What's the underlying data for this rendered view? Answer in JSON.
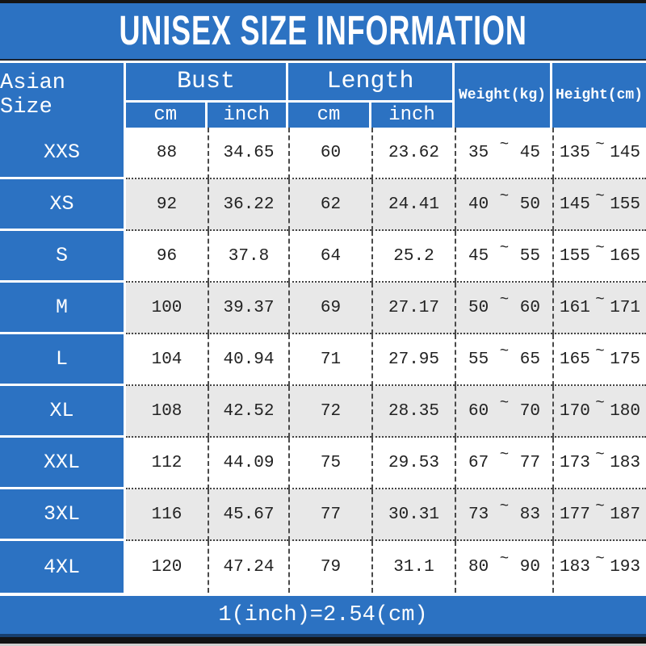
{
  "title": "UNISEX SIZE INFORMATION",
  "tilde": "~",
  "header": {
    "size_col": "Asian Size",
    "bust": "Bust",
    "length": "Length",
    "cm": "cm",
    "inch": "inch",
    "weight": "Weight(kg)",
    "height": "Height(cm)"
  },
  "rows": [
    {
      "size": "XXS",
      "bust_cm": "88",
      "bust_inch": "34.65",
      "length_cm": "60",
      "length_inch": "23.62",
      "weight_min": "35",
      "weight_max": "45",
      "height_min": "135",
      "height_max": "145"
    },
    {
      "size": "XS",
      "bust_cm": "92",
      "bust_inch": "36.22",
      "length_cm": "62",
      "length_inch": "24.41",
      "weight_min": "40",
      "weight_max": "50",
      "height_min": "145",
      "height_max": "155"
    },
    {
      "size": "S",
      "bust_cm": "96",
      "bust_inch": "37.8",
      "length_cm": "64",
      "length_inch": "25.2",
      "weight_min": "45",
      "weight_max": "55",
      "height_min": "155",
      "height_max": "165"
    },
    {
      "size": "M",
      "bust_cm": "100",
      "bust_inch": "39.37",
      "length_cm": "69",
      "length_inch": "27.17",
      "weight_min": "50",
      "weight_max": "60",
      "height_min": "161",
      "height_max": "171"
    },
    {
      "size": "L",
      "bust_cm": "104",
      "bust_inch": "40.94",
      "length_cm": "71",
      "length_inch": "27.95",
      "weight_min": "55",
      "weight_max": "65",
      "height_min": "165",
      "height_max": "175"
    },
    {
      "size": "XL",
      "bust_cm": "108",
      "bust_inch": "42.52",
      "length_cm": "72",
      "length_inch": "28.35",
      "weight_min": "60",
      "weight_max": "70",
      "height_min": "170",
      "height_max": "180"
    },
    {
      "size": "XXL",
      "bust_cm": "112",
      "bust_inch": "44.09",
      "length_cm": "75",
      "length_inch": "29.53",
      "weight_min": "67",
      "weight_max": "77",
      "height_min": "173",
      "height_max": "183"
    },
    {
      "size": "3XL",
      "bust_cm": "116",
      "bust_inch": "45.67",
      "length_cm": "77",
      "length_inch": "30.31",
      "weight_min": "73",
      "weight_max": "83",
      "height_min": "177",
      "height_max": "187"
    },
    {
      "size": "4XL",
      "bust_cm": "120",
      "bust_inch": "47.24",
      "length_cm": "79",
      "length_inch": "31.1",
      "weight_min": "80",
      "weight_max": "90",
      "height_min": "183",
      "height_max": "193"
    }
  ],
  "footer": "1(inch)=2.54(cm)",
  "colors": {
    "blue": "#2c72c2",
    "row_alt": "#e8e8e8",
    "navy_line": "#173f6e",
    "black_strip": "#121212"
  },
  "chart_data": {
    "type": "table",
    "title": "UNISEX SIZE INFORMATION",
    "columns": [
      "Asian Size",
      "Bust cm",
      "Bust inch",
      "Length cm",
      "Length inch",
      "Weight(kg)",
      "Height(cm)"
    ],
    "rows": [
      [
        "XXS",
        "88",
        "34.65",
        "60",
        "23.62",
        "35~45",
        "135~145"
      ],
      [
        "XS",
        "92",
        "36.22",
        "62",
        "24.41",
        "40~50",
        "145~155"
      ],
      [
        "S",
        "96",
        "37.8",
        "64",
        "25.2",
        "45~55",
        "155~165"
      ],
      [
        "M",
        "100",
        "39.37",
        "69",
        "27.17",
        "50~60",
        "161~171"
      ],
      [
        "L",
        "104",
        "40.94",
        "71",
        "27.95",
        "55~65",
        "165~175"
      ],
      [
        "XL",
        "108",
        "42.52",
        "72",
        "28.35",
        "60~70",
        "170~180"
      ],
      [
        "XXL",
        "112",
        "44.09",
        "75",
        "29.53",
        "67~77",
        "173~183"
      ],
      [
        "3XL",
        "116",
        "45.67",
        "77",
        "30.31",
        "73~83",
        "177~187"
      ],
      [
        "4XL",
        "120",
        "47.24",
        "79",
        "31.1",
        "80~90",
        "183~193"
      ]
    ],
    "note": "1(inch)=2.54(cm)"
  }
}
